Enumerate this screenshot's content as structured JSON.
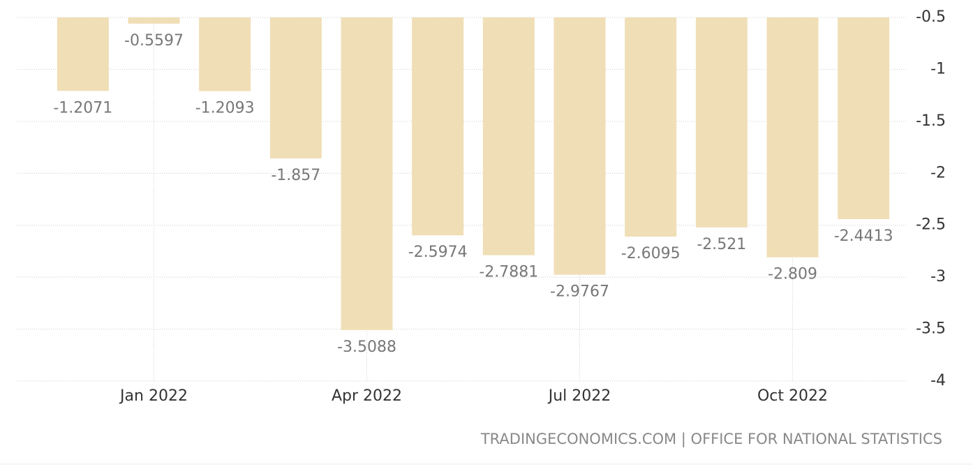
{
  "chart_data": {
    "type": "bar",
    "categories": [
      null,
      "Jan 2022",
      null,
      null,
      "Apr 2022",
      null,
      null,
      "Jul 2022",
      null,
      null,
      "Oct 2022",
      null
    ],
    "values": [
      -1.2071,
      -0.5597,
      -1.2093,
      -1.857,
      -3.5088,
      -2.5974,
      -2.7881,
      -2.9767,
      -2.6095,
      -2.521,
      -2.809,
      -2.4413
    ],
    "color": "#f0deb6",
    "ylim": [
      -4,
      -0.5
    ],
    "yticks": [
      -0.5,
      -1,
      -1.5,
      -2,
      -2.5,
      -3,
      -3.5,
      -4
    ],
    "grid": true,
    "source": "TRADINGECONOMICS.COM | OFFICE FOR NATIONAL STATISTICS"
  }
}
